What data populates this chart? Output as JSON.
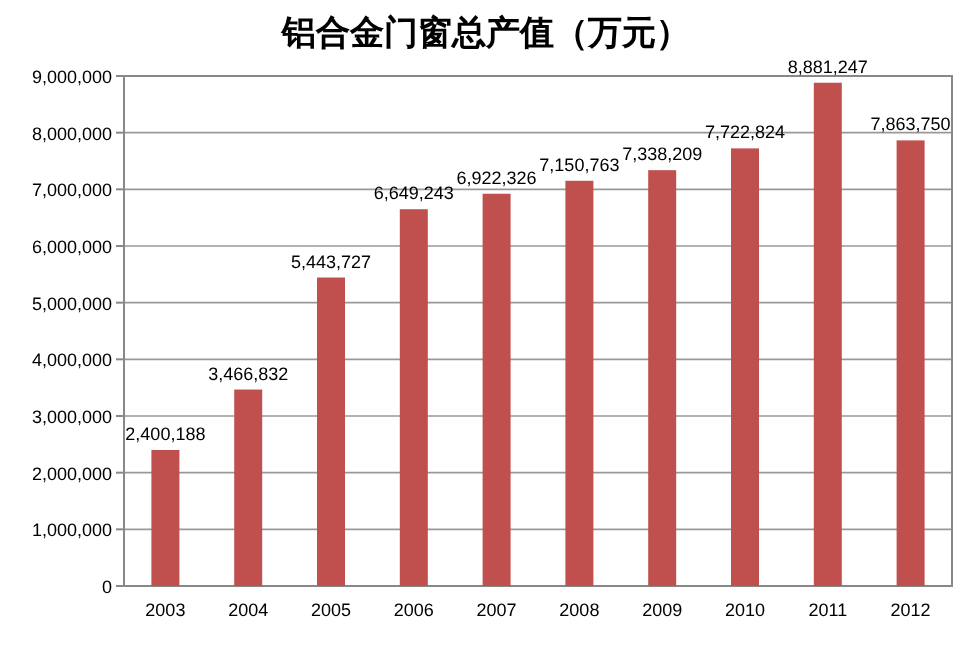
{
  "chart_data": {
    "type": "bar",
    "title": "铝合金门窗总产值（万元）",
    "categories": [
      "2003",
      "2004",
      "2005",
      "2006",
      "2007",
      "2008",
      "2009",
      "2010",
      "2011",
      "2012"
    ],
    "values": [
      2400188,
      3466832,
      5443727,
      6649243,
      6922326,
      7150763,
      7338209,
      7722824,
      8881247,
      7863750
    ],
    "value_labels": [
      "2,400,188",
      "3,466,832",
      "5,443,727",
      "6,649,243",
      "6,922,326",
      "7,150,763",
      "7,338,209",
      "7,722,824",
      "8,881,247",
      "7,863,750"
    ],
    "color": "#c0504d",
    "ylim": [
      0,
      9000000
    ],
    "yticks": [
      {
        "value": 0,
        "label": "0"
      },
      {
        "value": 1000000,
        "label": "1,000,000"
      },
      {
        "value": 2000000,
        "label": "2,000,000"
      },
      {
        "value": 3000000,
        "label": "3,000,000"
      },
      {
        "value": 4000000,
        "label": "4,000,000"
      },
      {
        "value": 5000000,
        "label": "5,000,000"
      },
      {
        "value": 6000000,
        "label": "6,000,000"
      },
      {
        "value": 7000000,
        "label": "7,000,000"
      },
      {
        "value": 8000000,
        "label": "8,000,000"
      },
      {
        "value": 9000000,
        "label": "9,000,000"
      }
    ],
    "grid": "y"
  }
}
